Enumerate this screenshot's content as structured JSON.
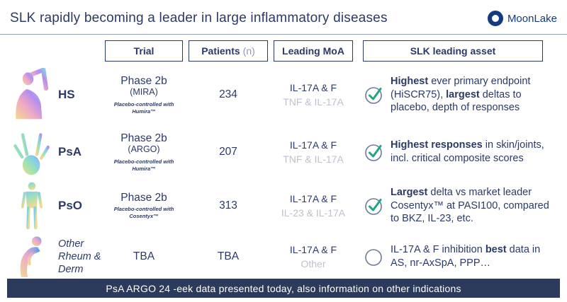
{
  "header": {
    "title": "SLK rapidly becoming a leader in large inflammatory diseases",
    "logo": {
      "icon": "moonlake-ring-icon",
      "text": "MoonLake"
    }
  },
  "columns": {
    "trial": "Trial",
    "patients": "Patients",
    "patients_suffix": "(n)",
    "moa": "Leading MoA",
    "asset": "SLK leading asset"
  },
  "rows": [
    {
      "icon": "raised-arm-figure-icon",
      "indication": "HS",
      "trial_phase": "Phase 2b",
      "trial_name": "(MIRA)",
      "trial_note": "Placebo-controlled with Humira™",
      "patients": "234",
      "moa_primary": "IL-17A & F",
      "moa_secondary": "TNF & IL-17A",
      "checked": true,
      "asset_segments": [
        {
          "text": "Highest",
          "bold": true
        },
        {
          "text": " ever primary endpoint (HiSCR75), "
        },
        {
          "text": "largest",
          "bold": true
        },
        {
          "text": " deltas to placebo, depth of responses"
        }
      ]
    },
    {
      "icon": "skeletal-hand-icon",
      "indication": "PsA",
      "trial_phase": "Phase 2b",
      "trial_name": "(ARGO)",
      "trial_note": "Placebo-controlled with Humira™",
      "patients": "207",
      "moa_primary": "IL-17A & F",
      "moa_secondary": "TNF & IL-17A",
      "checked": true,
      "asset_segments": [
        {
          "text": "Highest responses",
          "bold": true
        },
        {
          "text": " in skin/joints, incl. critical composite scores"
        }
      ]
    },
    {
      "icon": "standing-body-icon",
      "indication": "PsO",
      "trial_phase": "Phase 2b",
      "trial_name": "",
      "trial_note": "Placebo-controlled with Cosentyx™",
      "patients": "313",
      "moa_primary": "IL-17A & F",
      "moa_secondary": "IL-23 & IL-17A",
      "checked": true,
      "asset_segments": [
        {
          "text": "Largest",
          "bold": true
        },
        {
          "text": " delta vs market leader Cosentyx™ at PASI100, compared to BKZ, IL-23, etc."
        }
      ]
    },
    {
      "icon": "back-pain-figure-icon",
      "indication": "Other Rheum & Derm",
      "trial_phase": "TBA",
      "trial_name": "",
      "trial_note": "",
      "patients": "TBA",
      "moa_primary": "IL-17A & F",
      "moa_secondary": "Other",
      "checked": false,
      "asset_segments": [
        {
          "text": "IL-17A & F inhibition "
        },
        {
          "text": "best",
          "bold": true
        },
        {
          "text": " data in AS, nr-AxSpA, PPP…"
        }
      ]
    }
  ],
  "footer": {
    "banner": "PsA ARGO 24 -eek data presented today, also information on other indications"
  },
  "colors": {
    "navy_text": "#2b3a67",
    "logo_navy": "#123b80",
    "muted_gray": "#bcc1cd",
    "check_green": "#1fa58a",
    "banner_bg": "#2c3a5c"
  }
}
